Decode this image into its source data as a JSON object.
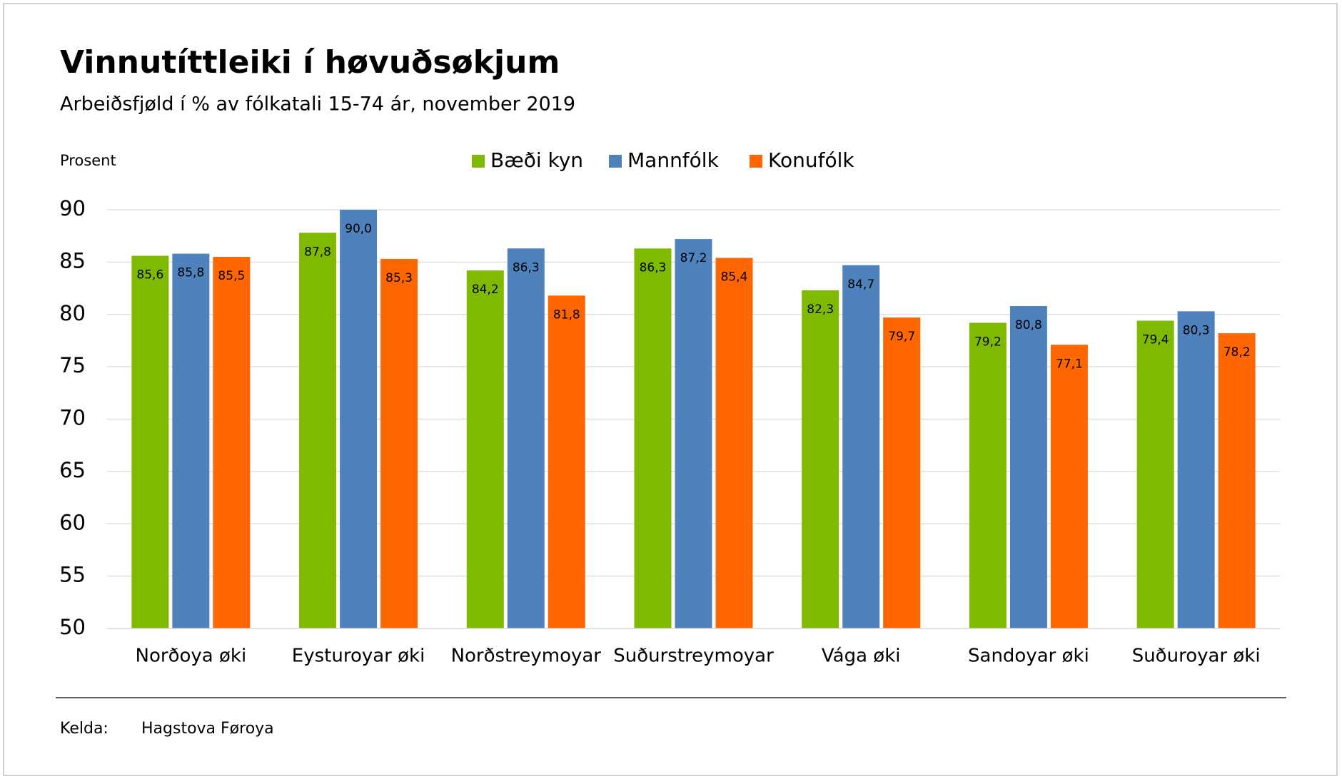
{
  "chart_data": {
    "type": "bar",
    "title": "Vinnutíttleiki í høvuðsøkjum",
    "subtitle": "Arbeiðsfjøld í % av fólkatali 15-74 ár, november 2019",
    "y_label": "Prosent",
    "categories": [
      "Norðoya øki",
      "Eysturoyar øki",
      "Norðstreymoyar",
      "Suðurstreymoyar",
      "Vága øki",
      "Sandoyar øki",
      "Suðuroyar øki"
    ],
    "series": [
      {
        "name": "Bæði kyn",
        "color": "#7fba00",
        "values": [
          85.6,
          87.8,
          84.2,
          86.3,
          82.3,
          79.2,
          79.4
        ],
        "value_labels": [
          "85,6",
          "87,8",
          "84,2",
          "86,3",
          "82,3",
          "79,2",
          "79,4"
        ]
      },
      {
        "name": "Mannfólk",
        "color": "#4f81bd",
        "values": [
          85.8,
          90.0,
          86.3,
          87.2,
          84.7,
          80.8,
          80.3
        ],
        "value_labels": [
          "85,8",
          "90,0",
          "86,3",
          "87,2",
          "84,7",
          "80,8",
          "80,3"
        ]
      },
      {
        "name": "Konufólk",
        "color": "#ff6600",
        "values": [
          85.5,
          85.3,
          81.8,
          85.4,
          79.7,
          77.1,
          78.2
        ],
        "value_labels": [
          "85,5",
          "85,3",
          "81,8",
          "85,4",
          "79,7",
          "77,1",
          "78,2"
        ]
      }
    ],
    "ylim": [
      50,
      90
    ],
    "yticks": [
      50,
      55,
      60,
      65,
      70,
      75,
      80,
      85,
      90
    ],
    "grid": true,
    "legend": "top",
    "source_label": "Kelda:",
    "source": "Hagstova Føroya"
  }
}
